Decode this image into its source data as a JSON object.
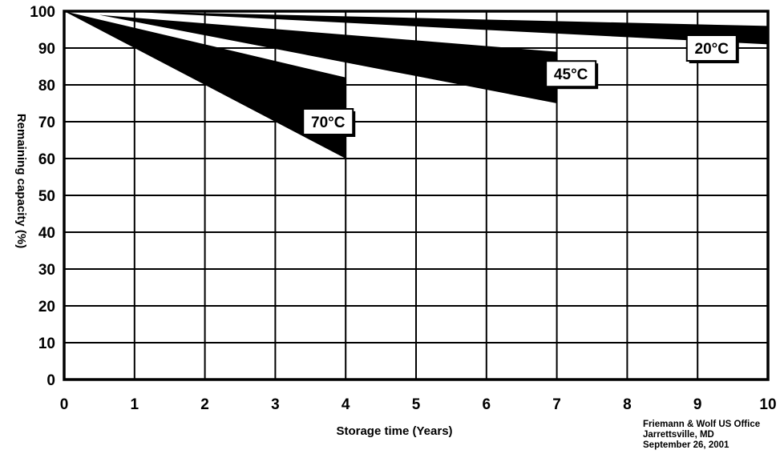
{
  "chart_data": {
    "type": "area",
    "xlabel": "Storage time (Years)",
    "ylabel": "Remaining capacity (%)",
    "xlim": [
      0,
      10
    ],
    "ylim": [
      0,
      100
    ],
    "xticks": [
      "0",
      "1",
      "2",
      "3",
      "4",
      "5",
      "6",
      "7",
      "8",
      "9",
      "10"
    ],
    "yticks": [
      "0",
      "10",
      "20",
      "30",
      "40",
      "50",
      "60",
      "70",
      "80",
      "90",
      "100"
    ],
    "grid": true,
    "series": [
      {
        "name": "70°C",
        "label_text": "70",
        "label_unit": "°C",
        "upper": [
          {
            "x": 0,
            "y": 100
          },
          {
            "x": 4,
            "y": 82
          }
        ],
        "lower": [
          {
            "x": 0,
            "y": 100
          },
          {
            "x": 4,
            "y": 60
          }
        ],
        "label_at": {
          "x": 3.75,
          "y": 70
        }
      },
      {
        "name": "45°C",
        "label_text": "45",
        "label_unit": "°C",
        "upper": [
          {
            "x": 0.5,
            "y": 99
          },
          {
            "x": 7,
            "y": 89
          }
        ],
        "lower": [
          {
            "x": 0.5,
            "y": 99
          },
          {
            "x": 7,
            "y": 75
          }
        ],
        "label_at": {
          "x": 7.2,
          "y": 83
        }
      },
      {
        "name": "20°C",
        "label_text": "20",
        "label_unit": "°C",
        "upper": [
          {
            "x": 0.8,
            "y": 100
          },
          {
            "x": 10,
            "y": 96
          }
        ],
        "lower": [
          {
            "x": 0.8,
            "y": 100
          },
          {
            "x": 10,
            "y": 91
          }
        ],
        "label_at": {
          "x": 9.2,
          "y": 90
        }
      }
    ]
  },
  "credit": {
    "line1": "Friemann & Wolf US Office",
    "line2": "Jarrettsville, MD",
    "line3": "September 26, 2001"
  }
}
